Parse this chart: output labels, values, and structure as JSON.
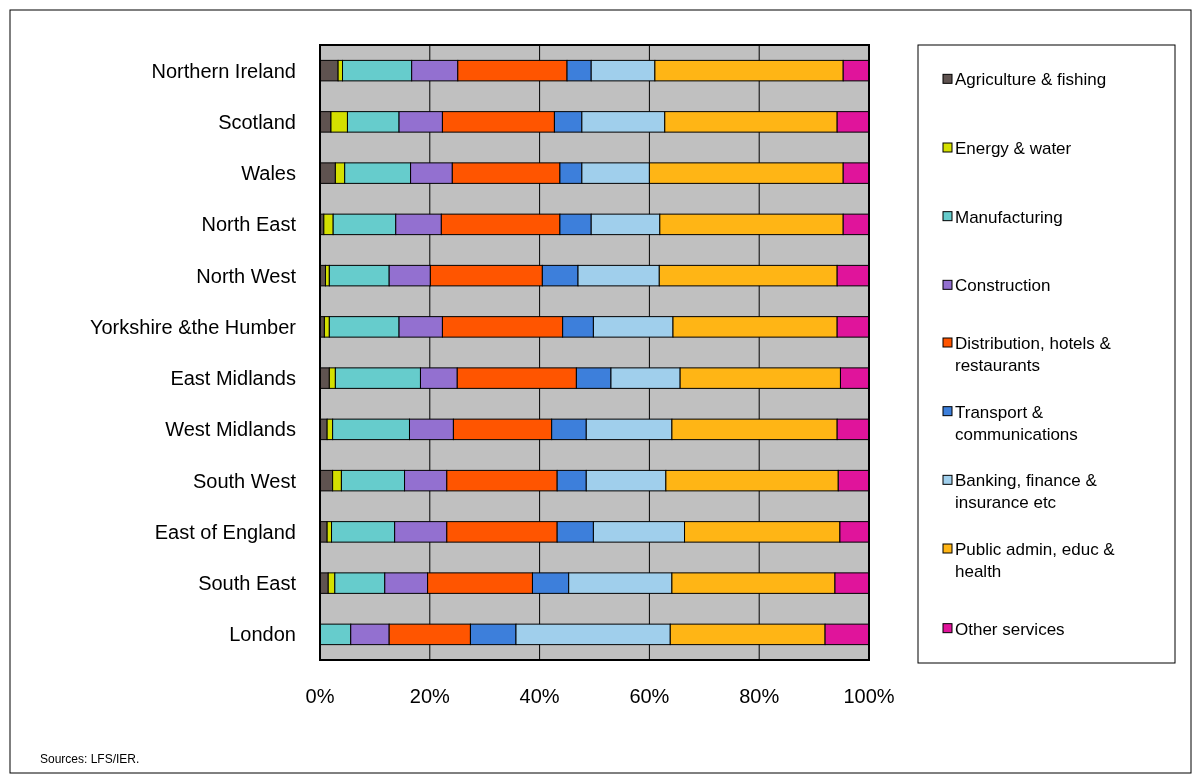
{
  "chart_data": {
    "type": "bar",
    "orientation": "horizontal",
    "stacked": true,
    "categories": [
      "Northern Ireland",
      "Scotland",
      "Wales",
      "North East",
      "North West",
      "Yorkshire &the Humber",
      "East Midlands",
      "West Midlands",
      "South West",
      "East of England",
      "South East",
      "London"
    ],
    "series": [
      {
        "name": "Agriculture & fishing",
        "color": "#5f5350",
        "values": [
          3.3,
          2.0,
          2.8,
          0.7,
          1.0,
          0.8,
          1.7,
          1.3,
          2.3,
          1.3,
          1.5,
          null
        ]
      },
      {
        "name": "Energy & water",
        "color": "#d4e000",
        "values": [
          0.8,
          3.0,
          1.7,
          1.7,
          0.7,
          0.9,
          1.1,
          1.0,
          1.6,
          0.8,
          1.2,
          null
        ]
      },
      {
        "name": "Manufacturing",
        "color": "#66cccc",
        "values": [
          12.6,
          9.4,
          12.0,
          11.4,
          10.9,
          12.7,
          15.5,
          14.0,
          11.5,
          11.5,
          9.1,
          5.6
        ]
      },
      {
        "name": "Construction",
        "color": "#9370d0",
        "values": [
          8.4,
          7.9,
          7.6,
          8.3,
          7.5,
          7.9,
          6.7,
          8.0,
          7.7,
          9.5,
          7.8,
          7.0
        ]
      },
      {
        "name": "Distribution, hotels & restaurants",
        "color": "#ff5500",
        "values": [
          19.9,
          20.4,
          19.6,
          21.6,
          20.4,
          21.9,
          21.7,
          17.9,
          20.1,
          20.1,
          19.1,
          14.8
        ]
      },
      {
        "name": "Transport & communications",
        "color": "#3d7fdb",
        "values": [
          4.4,
          5.0,
          4.0,
          5.7,
          6.5,
          5.6,
          6.3,
          6.3,
          5.3,
          6.6,
          6.6,
          8.3
        ]
      },
      {
        "name": "Banking, finance & insurance etc",
        "color": "#a0cfec",
        "values": [
          11.6,
          15.1,
          12.3,
          12.5,
          14.8,
          14.5,
          12.6,
          15.6,
          14.5,
          16.6,
          18.8,
          28.1
        ]
      },
      {
        "name": "Public admin, educ & health",
        "color": "#ffb515",
        "values": [
          34.3,
          31.4,
          35.3,
          33.4,
          32.4,
          29.9,
          29.2,
          30.1,
          31.4,
          28.3,
          29.7,
          28.2
        ]
      },
      {
        "name": "Other services",
        "color": "#e0149b",
        "values": [
          4.7,
          5.8,
          4.7,
          4.7,
          5.8,
          5.8,
          5.2,
          5.8,
          5.6,
          5.3,
          6.2,
          8.0
        ]
      }
    ],
    "xlim": [
      0,
      100
    ],
    "xticks": [
      {
        "value": 0,
        "label": "0%"
      },
      {
        "value": 20,
        "label": "20%"
      },
      {
        "value": 40,
        "label": "40%"
      },
      {
        "value": 60,
        "label": "60%"
      },
      {
        "value": 80,
        "label": "80%"
      },
      {
        "value": 100,
        "label": "100%"
      }
    ],
    "grid": "x",
    "legend": "right",
    "annotations": [
      "Sources: LFS/IER."
    ]
  }
}
